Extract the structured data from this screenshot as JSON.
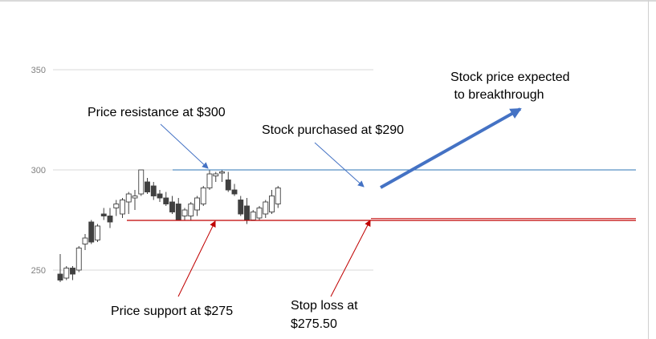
{
  "colors": {
    "gridline": "#d9d9d9",
    "resistance_line": "#2e75b6",
    "support_line": "#c00000",
    "arrow_blue": "#4472c4",
    "arrow_red": "#c00000",
    "candle_up_fill": "#ffffff",
    "candle_down_fill": "#404040",
    "candle_stroke": "#404040",
    "tick_text": "#7f7f7f"
  },
  "chart_data": {
    "type": "candlestick",
    "y_axis": {
      "ticks": [
        250,
        300,
        350
      ],
      "ylim": [
        230,
        365
      ]
    },
    "gridlines": true,
    "candles": [
      {
        "o": 248,
        "h": 258,
        "l": 244,
        "c": 245
      },
      {
        "o": 246,
        "h": 252,
        "l": 245,
        "c": 251
      },
      {
        "o": 251,
        "h": 252,
        "l": 245,
        "c": 248
      },
      {
        "o": 250,
        "h": 262,
        "l": 249,
        "c": 261
      },
      {
        "o": 263,
        "h": 268,
        "l": 260,
        "c": 266
      },
      {
        "o": 274,
        "h": 275,
        "l": 263,
        "c": 264
      },
      {
        "o": 265,
        "h": 273,
        "l": 264,
        "c": 272
      },
      {
        "o": 278,
        "h": 281,
        "l": 275,
        "c": 277
      },
      {
        "o": 277,
        "h": 281,
        "l": 271,
        "c": 274
      },
      {
        "o": 281,
        "h": 285,
        "l": 277,
        "c": 283
      },
      {
        "o": 278,
        "h": 286,
        "l": 276,
        "c": 285
      },
      {
        "o": 284,
        "h": 289,
        "l": 278,
        "c": 288
      },
      {
        "o": 286,
        "h": 290,
        "l": 280,
        "c": 287
      },
      {
        "o": 288,
        "h": 300,
        "l": 287,
        "c": 300
      },
      {
        "o": 294,
        "h": 296,
        "l": 288,
        "c": 289
      },
      {
        "o": 292,
        "h": 294,
        "l": 285,
        "c": 287
      },
      {
        "o": 288,
        "h": 290,
        "l": 284,
        "c": 286
      },
      {
        "o": 286,
        "h": 289,
        "l": 282,
        "c": 283
      },
      {
        "o": 284,
        "h": 287,
        "l": 278,
        "c": 279
      },
      {
        "o": 283,
        "h": 286,
        "l": 275,
        "c": 275
      },
      {
        "o": 277,
        "h": 281,
        "l": 275,
        "c": 280
      },
      {
        "o": 277,
        "h": 284,
        "l": 275,
        "c": 283
      },
      {
        "o": 280,
        "h": 287,
        "l": 277,
        "c": 286
      },
      {
        "o": 283,
        "h": 292,
        "l": 282,
        "c": 291
      },
      {
        "o": 291,
        "h": 300,
        "l": 290,
        "c": 298
      },
      {
        "o": 297,
        "h": 299,
        "l": 294,
        "c": 298
      },
      {
        "o": 299,
        "h": 300,
        "l": 294,
        "c": 299
      },
      {
        "o": 295,
        "h": 299,
        "l": 289,
        "c": 290
      },
      {
        "o": 290,
        "h": 293,
        "l": 287,
        "c": 288
      },
      {
        "o": 285,
        "h": 287,
        "l": 277,
        "c": 278
      },
      {
        "o": 282,
        "h": 286,
        "l": 273,
        "c": 275
      },
      {
        "o": 275,
        "h": 280,
        "l": 275,
        "c": 279
      },
      {
        "o": 276,
        "h": 282,
        "l": 275,
        "c": 281
      },
      {
        "o": 278,
        "h": 285,
        "l": 276,
        "c": 284
      },
      {
        "o": 279,
        "h": 290,
        "l": 278,
        "c": 287
      },
      {
        "o": 283,
        "h": 292,
        "l": 281,
        "c": 291
      }
    ],
    "resistance_level": 300,
    "support_level": 275,
    "stop_loss_level": 275.5,
    "annotations": [
      {
        "id": "resistance",
        "lines": [
          "Price resistance at $300"
        ]
      },
      {
        "id": "purchase",
        "lines": [
          "Stock purchased at $290"
        ]
      },
      {
        "id": "expected",
        "lines": [
          "Stock price expected",
          " to breakthrough"
        ]
      },
      {
        "id": "support",
        "lines": [
          "Price support at $275"
        ]
      },
      {
        "id": "stoploss",
        "lines": [
          "Stop loss at",
          "$275.50"
        ]
      }
    ]
  }
}
